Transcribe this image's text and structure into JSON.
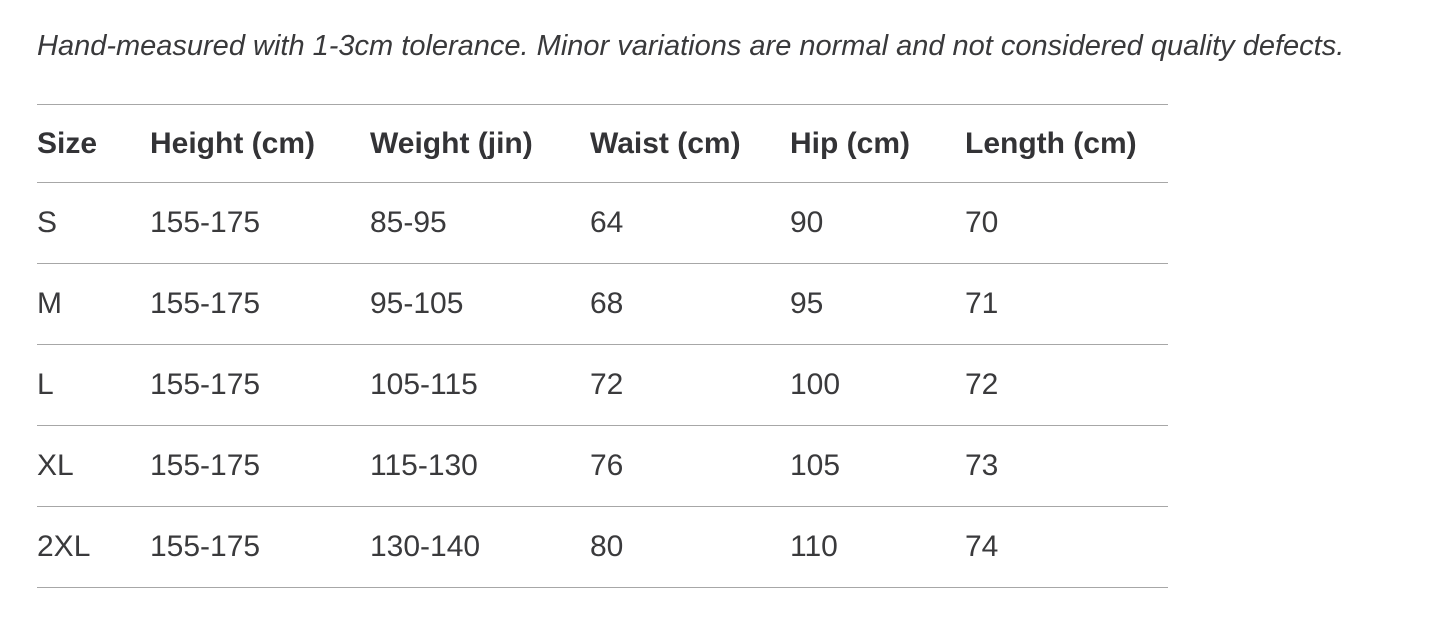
{
  "note": "Hand-measured with 1-3cm tolerance. Minor variations are normal and not considered quality defects.",
  "table": {
    "columns": [
      "Size",
      "Height (cm)",
      "Weight (jin)",
      "Waist (cm)",
      "Hip (cm)",
      "Length (cm)"
    ],
    "rows": [
      [
        "S",
        "155-175",
        "85-95",
        "64",
        "90",
        "70"
      ],
      [
        "M",
        "155-175",
        "95-105",
        "68",
        "95",
        "71"
      ],
      [
        "L",
        "155-175",
        "105-115",
        "72",
        "100",
        "72"
      ],
      [
        "XL",
        "155-175",
        "115-130",
        "76",
        "105",
        "73"
      ],
      [
        "2XL",
        "155-175",
        "130-140",
        "80",
        "110",
        "74"
      ]
    ]
  },
  "colors": {
    "text": "#333336",
    "divider": "#a7a7a7",
    "background": "#ffffff"
  }
}
